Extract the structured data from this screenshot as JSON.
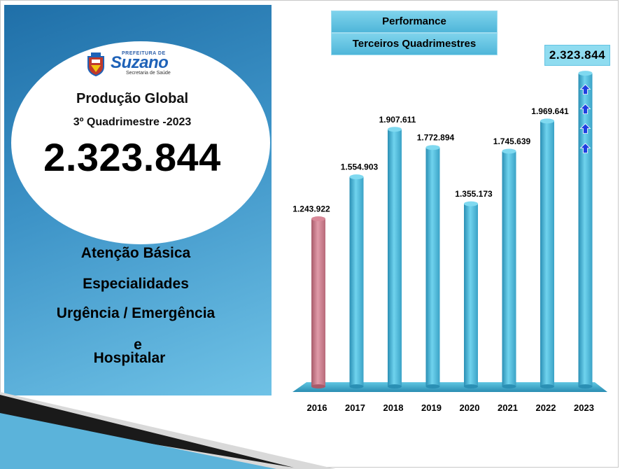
{
  "panel": {
    "logo_small": "PREFEITURA DE",
    "logo_main": "Suzano",
    "logo_sub": "Secretaria de Saúde",
    "title": "Produção Global",
    "period": "3º Quadrimestre -2023",
    "total": "2.323.844",
    "lines": [
      "Atenção Básica",
      "Especialidades",
      "Urgência / Emergência",
      "e",
      "Hospitalar"
    ]
  },
  "header": {
    "line1": "Performance",
    "line2": "Terceiros Quadrimestres",
    "callout": "2.323.844"
  },
  "colors": {
    "first_bar": "#c97a8a",
    "bars": "#4fb8d6",
    "arrows": "#1f3fe0",
    "panel": "#3d93c7"
  },
  "chart_data": {
    "type": "bar",
    "categories": [
      "2016",
      "2017",
      "2018",
      "2019",
      "2020",
      "2021",
      "2022",
      "2023"
    ],
    "values": [
      1243922,
      1554903,
      1907611,
      1772894,
      1355173,
      1745639,
      1969641,
      2323844
    ],
    "data_labels": [
      "1.243.922",
      "1.554.903",
      "1.907.611",
      "1.772.894",
      "1.355.173",
      "1.745.639",
      "1.969.641",
      ""
    ],
    "title": "Performance — Terceiros Quadrimestres",
    "xlabel": "",
    "ylabel": "",
    "ylim": [
      0,
      2400000
    ],
    "grid": false,
    "legend": "none"
  }
}
